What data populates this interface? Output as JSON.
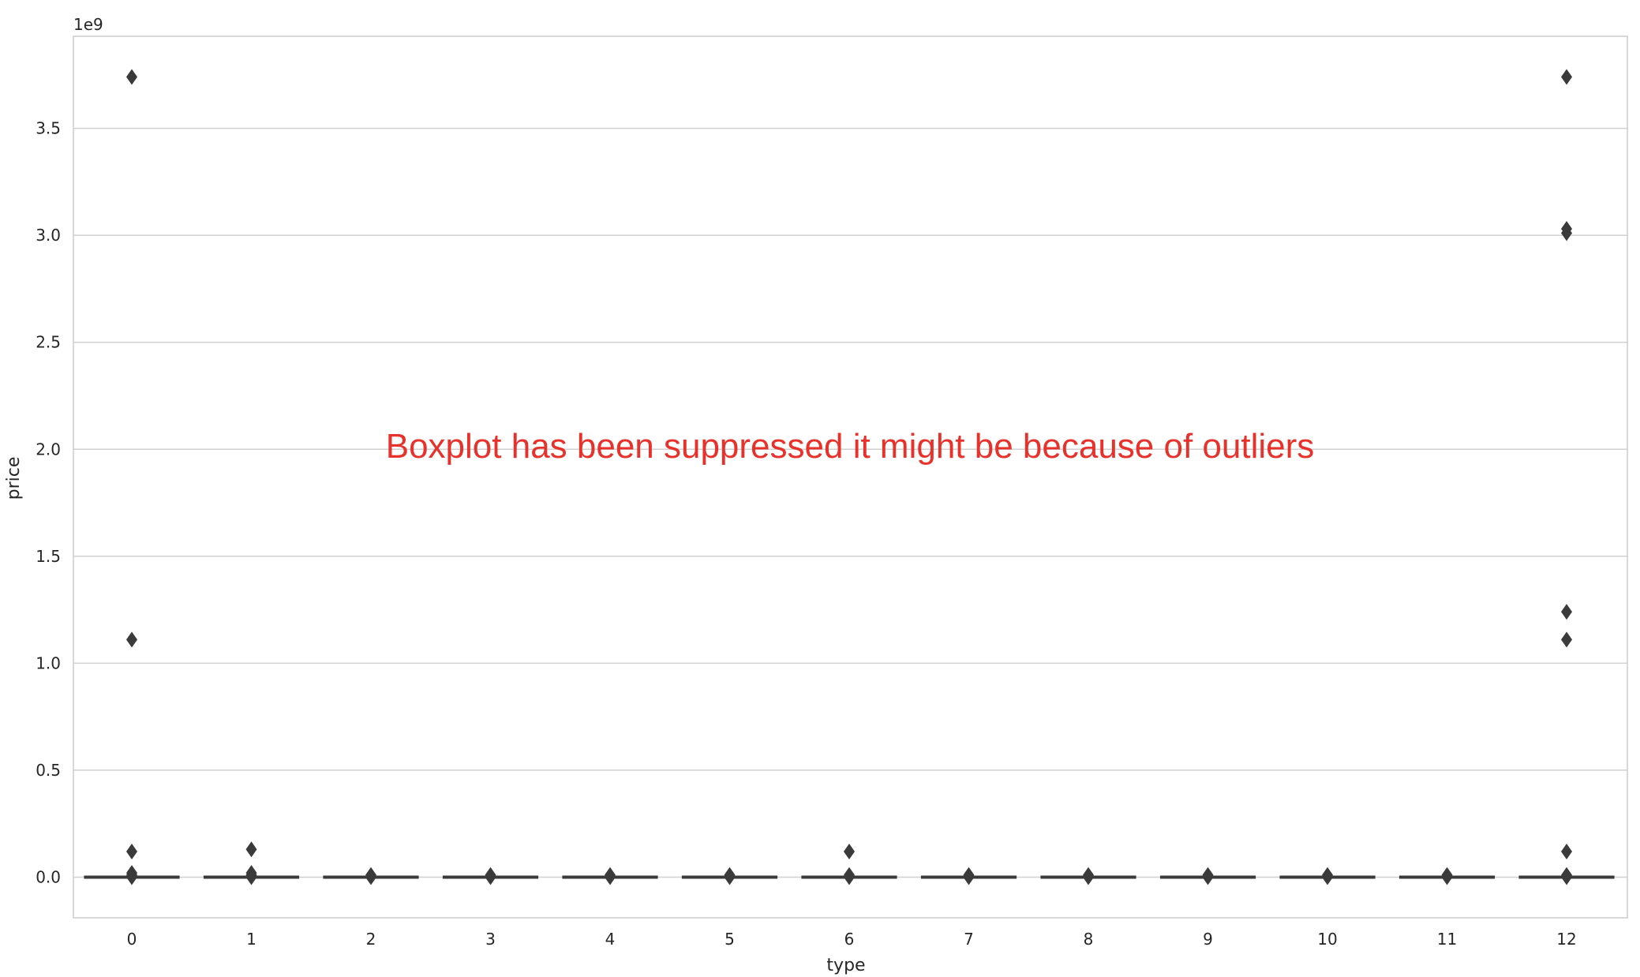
{
  "chart_data": {
    "type": "box",
    "xlabel": "type",
    "ylabel": "price",
    "y_offset_label": "1e9",
    "ylim": [
      -0.19,
      3.93
    ],
    "y_ticks": [
      "0.0",
      "0.5",
      "1.0",
      "1.5",
      "2.0",
      "2.5",
      "3.0",
      "3.5"
    ],
    "y_tick_values": [
      0.0,
      0.5,
      1.0,
      1.5,
      2.0,
      2.5,
      3.0,
      3.5
    ],
    "grid": true,
    "categories": [
      "0",
      "1",
      "2",
      "3",
      "4",
      "5",
      "6",
      "7",
      "8",
      "9",
      "10",
      "11",
      "12"
    ],
    "outliers": [
      [
        3.74,
        1.11,
        0.12,
        0.02,
        0.01,
        0.0
      ],
      [
        0.13,
        0.02,
        0.01,
        0.0
      ],
      [
        0.01,
        0.0
      ],
      [
        0.01,
        0.0
      ],
      [
        0.01,
        0.0
      ],
      [
        0.01,
        0.0
      ],
      [
        0.12,
        0.01,
        0.0
      ],
      [
        0.01,
        0.0
      ],
      [
        0.01,
        0.0
      ],
      [
        0.01,
        0.0
      ],
      [
        0.01,
        0.0
      ],
      [
        0.01,
        0.0
      ],
      [
        3.74,
        3.03,
        3.01,
        1.24,
        1.11,
        0.12,
        0.01,
        0.0
      ]
    ],
    "box_level": 0.0,
    "box_color": "#3a3a3a",
    "grid_color": "#d0d0d0",
    "annotation": "Boxplot has been suppressed it might be because of outliers",
    "annotation_color": "#e8312a"
  }
}
